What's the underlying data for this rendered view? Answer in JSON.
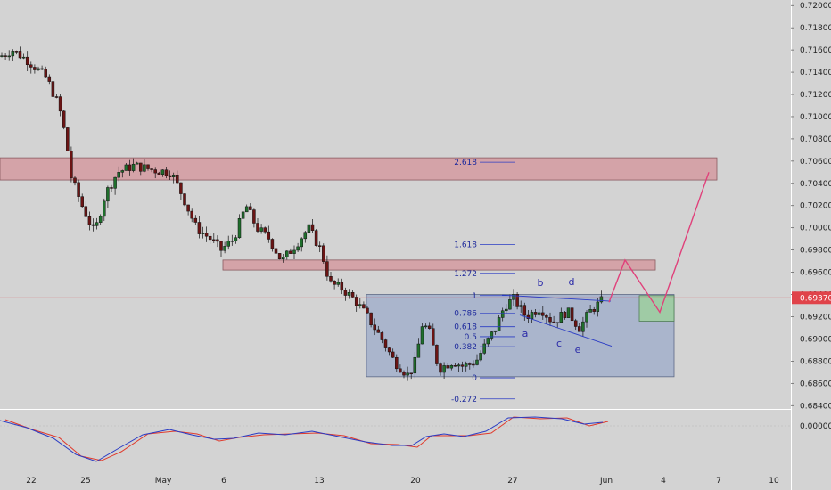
{
  "price_axis": {
    "ticks": [
      "0.72000",
      "0.71800",
      "0.71600",
      "0.71400",
      "0.71200",
      "0.71000",
      "0.70800",
      "0.70600",
      "0.70400",
      "0.70200",
      "0.70000",
      "0.69800",
      "0.69600",
      "0.69400",
      "0.69200",
      "0.69000",
      "0.68800",
      "0.68600",
      "0.68400"
    ],
    "current_price": "0.69370",
    "current_price_color": "#e0434a"
  },
  "osc_axis": {
    "tick": "0.00000"
  },
  "time_axis": {
    "ticks": [
      "22",
      "25",
      "May",
      "6",
      "13",
      "20",
      "27",
      "Jun",
      "4",
      "7",
      "10"
    ]
  },
  "chart_data": {
    "type": "candlestick",
    "symbol": "",
    "y_range": [
      0.6837,
      0.7205
    ],
    "colors": {
      "up": "#1f6f2c",
      "down": "#6b1414",
      "macd": "#2b3cc4",
      "signal": "#e03a2c",
      "zone_fill": "#d4a3a8",
      "box_fill": "#aab5cc",
      "projection": "#e0407a",
      "target_fill": "#9fcba5"
    },
    "fibonacci": [
      {
        "label": "2.618",
        "level": 0.7059
      },
      {
        "label": "1.618",
        "level": 0.6985
      },
      {
        "label": "1.272",
        "level": 0.6959
      },
      {
        "label": "1",
        "level": 0.6939
      },
      {
        "label": "0.786",
        "level": 0.6923
      },
      {
        "label": "0.618",
        "level": 0.6911
      },
      {
        "label": "0.5",
        "level": 0.6902
      },
      {
        "label": "0.382",
        "level": 0.6893
      },
      {
        "label": "0",
        "level": 0.6865
      },
      {
        "label": "-0.272",
        "level": 0.6846
      }
    ],
    "wave_labels": [
      "b",
      "d",
      "a",
      "c",
      "e"
    ],
    "resistance_zones": [
      {
        "top": 0.7063,
        "bottom": 0.7043
      },
      {
        "top": 0.6971,
        "bottom": 0.6962
      }
    ],
    "range_box": {
      "top": 0.694,
      "bottom": 0.6866
    },
    "target_box": {
      "top": 0.6939,
      "bottom": 0.6916
    },
    "projection": [
      0.6933,
      0.6971,
      0.6924,
      0.705
    ]
  }
}
